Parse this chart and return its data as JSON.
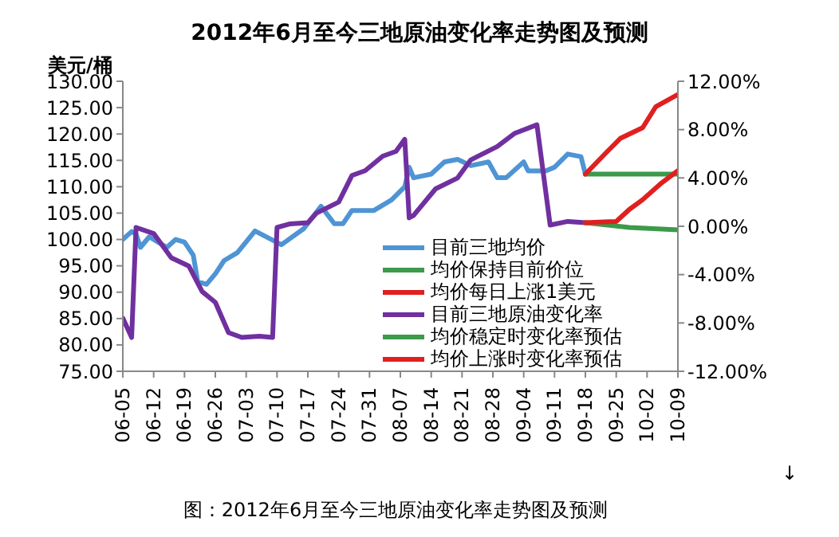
{
  "chart_data": {
    "type": "line",
    "title": "2012年6月至今三地原油变化率走势图及预测",
    "ylabel": "美元/桶",
    "xlim": [
      "--06-05",
      "--10-09"
    ],
    "xticks": [
      {
        "value": "--06-05",
        "label": "06-05"
      },
      {
        "value": "--06-12",
        "label": "06-12"
      },
      {
        "value": "--06-19",
        "label": "06-19"
      },
      {
        "value": "--06-26",
        "label": "06-26"
      },
      {
        "value": "--07-03",
        "label": "07-03"
      },
      {
        "value": "--07-10",
        "label": "07-10"
      },
      {
        "value": "--07-17",
        "label": "07-17"
      },
      {
        "value": "--07-24",
        "label": "07-24"
      },
      {
        "value": "--07-31",
        "label": "07-31"
      },
      {
        "value": "--08-07",
        "label": "08-07"
      },
      {
        "value": "--08-14",
        "label": "08-14"
      },
      {
        "value": "--08-21",
        "label": "08-21"
      },
      {
        "value": "--08-28",
        "label": "08-28"
      },
      {
        "value": "--09-04",
        "label": "09-04"
      },
      {
        "value": "--09-11",
        "label": "09-11"
      },
      {
        "value": "--09-18",
        "label": "09-18"
      },
      {
        "value": "--09-25",
        "label": "09-25"
      },
      {
        "value": "--10-02",
        "label": "10-02"
      },
      {
        "value": "--10-09",
        "label": "10-09"
      }
    ],
    "ylim": [
      75,
      130
    ],
    "yticks": [
      {
        "value": 75,
        "label": "75.00"
      },
      {
        "value": 80,
        "label": "80.00"
      },
      {
        "value": 85,
        "label": "85.00"
      },
      {
        "value": 90,
        "label": "90.00"
      },
      {
        "value": 95,
        "label": "95.00"
      },
      {
        "value": 100,
        "label": "100.00"
      },
      {
        "value": 105,
        "label": "105.00"
      },
      {
        "value": 110,
        "label": "110.00"
      },
      {
        "value": 115,
        "label": "115.00"
      },
      {
        "value": 120,
        "label": "120.00"
      },
      {
        "value": 125,
        "label": "125.00"
      },
      {
        "value": 130,
        "label": "130.00"
      }
    ],
    "y2lim": [
      -12,
      12
    ],
    "y2ticks": [
      {
        "value": -12,
        "label": "-12.00%"
      },
      {
        "value": -8,
        "label": "-8.00%"
      },
      {
        "value": -4,
        "label": "-4.00%"
      },
      {
        "value": 0,
        "label": "0.00%"
      },
      {
        "value": 4,
        "label": "4.00%"
      },
      {
        "value": 8,
        "label": "8.00%"
      },
      {
        "value": 12,
        "label": "12.00%"
      }
    ],
    "grid": false,
    "legend": "bottom right",
    "marker": "none",
    "line_style": "solid",
    "annotations": [
      "↓",
      "图：2012年6月至今三地原油变化率走势图及预测"
    ],
    "series": [
      {
        "name": "目前三地均价",
        "color": "#4f94d4",
        "x": [
          "--06-05",
          "--06-07",
          "--06-08",
          "--06-09",
          "--06-11",
          "--06-13",
          "--06-15",
          "--06-17",
          "--06-19",
          "--06-21",
          "--06-22",
          "--06-24",
          "--06-26",
          "--06-28",
          "--07-01",
          "--07-05",
          "--07-11",
          "--07-16",
          "--07-20",
          "--07-23",
          "--07-25",
          "--07-27",
          "--08-01",
          "--08-05",
          "--08-08",
          "--08-09",
          "--08-10",
          "--08-14",
          "--08-17",
          "--08-20",
          "--08-23",
          "--08-27",
          "--08-29",
          "--08-31",
          "--09-04",
          "--09-05",
          "--09-09",
          "--09-11",
          "--09-14",
          "--09-17",
          "--09-18"
        ],
        "values": [
          100,
          101.5,
          101,
          98.5,
          100.5,
          99.5,
          98.5,
          100,
          99.5,
          97,
          92,
          91.5,
          93.5,
          96,
          97.5,
          101.6,
          99,
          102,
          106.3,
          103,
          103,
          105.5,
          105.5,
          107.5,
          110,
          113.7,
          111.7,
          112.4,
          114.7,
          115.2,
          114,
          114.7,
          111.7,
          111.7,
          114.7,
          113,
          113,
          113.7,
          116.2,
          115.7,
          112.4
        ]
      },
      {
        "name": "均价保持目前价位",
        "color": "#3c9a4a",
        "x": [
          "--09-18",
          "--10-09"
        ],
        "values": [
          112.4,
          112.4
        ]
      },
      {
        "name": "均价每日上涨1美元",
        "color": "#e02020",
        "x": [
          "--09-18",
          "--09-23",
          "--09-26",
          "--10-01",
          "--10-04",
          "--10-09"
        ],
        "values": [
          112.4,
          116.7,
          119.2,
          121.2,
          125.2,
          127.5
        ]
      },
      {
        "name": "目前三地原油变化率",
        "color": "#7030a0",
        "axis": "y2",
        "x": [
          "--06-05",
          "--06-07",
          "--06-08",
          "--06-12",
          "--06-16",
          "--06-20",
          "--06-23",
          "--06-26",
          "--06-29",
          "--07-02",
          "--07-06",
          "--07-09",
          "--07-10",
          "--07-13",
          "--07-17",
          "--07-19",
          "--07-24",
          "--07-27",
          "--07-30",
          "--08-03",
          "--08-06",
          "--08-08",
          "--08-09",
          "--08-10",
          "--08-15",
          "--08-20",
          "--08-23",
          "--08-29",
          "--09-02",
          "--09-07",
          "--09-10",
          "--09-14",
          "--09-18"
        ],
        "values": [
          -7.6,
          -9.2,
          -0.1,
          -0.6,
          -2.6,
          -3.3,
          -5.4,
          -6.3,
          -8.8,
          -9.2,
          -9.1,
          -9.2,
          -0.1,
          0.2,
          0.3,
          1.1,
          2,
          4.2,
          4.6,
          5.8,
          6.2,
          7.2,
          0.7,
          0.9,
          3.1,
          4,
          5.5,
          6.6,
          7.7,
          8.4,
          0.1,
          0.4,
          0.3
        ]
      },
      {
        "name": "均价稳定时变化率预估",
        "color": "#3c9a4a",
        "axis": "y2",
        "x": [
          "--09-18",
          "--09-28",
          "--10-09"
        ],
        "values": [
          0.3,
          -0.1,
          -0.3
        ]
      },
      {
        "name": "均价上涨时变化率预估",
        "color": "#e02020",
        "axis": "y2",
        "x": [
          "--09-18",
          "--09-25",
          "--09-28",
          "--10-01",
          "--10-05",
          "--10-09"
        ],
        "values": [
          0.3,
          0.4,
          1.4,
          2.2,
          3.5,
          4.6
        ]
      }
    ]
  }
}
